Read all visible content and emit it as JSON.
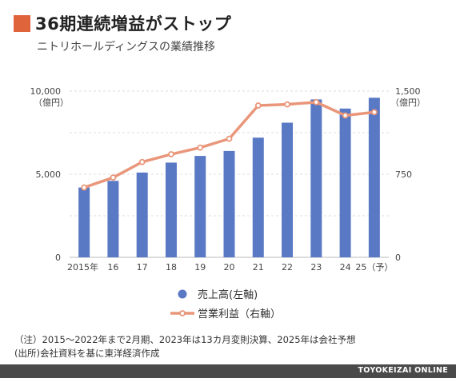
{
  "header": {
    "title": "36期連続増益がストップ",
    "subtitle": "ニトリホールディングスの業績推移"
  },
  "colors": {
    "accent": "#e0643b",
    "bar": "#5a79c4",
    "line": "#e9967a",
    "footer": "#4a4a4a"
  },
  "notes": {
    "note1": "（注）2015〜2022年まで2月期、2023年は13カ月変則決算、2025年は会社予想",
    "note2": "(出所)会社資料を基に東洋経済作成"
  },
  "footer": {
    "brand": "TOYOKEIZAI ONLINE"
  },
  "chart_data": {
    "type": "bar",
    "categories": [
      "2015年",
      "16",
      "17",
      "18",
      "19",
      "20",
      "21",
      "22",
      "23",
      "24",
      "25（予）"
    ],
    "series": [
      {
        "name": "売上高(左軸)",
        "type": "bar",
        "axis": "left",
        "values": [
          4200,
          4600,
          5100,
          5700,
          6100,
          6400,
          7200,
          8100,
          9500,
          8950,
          9600
        ]
      },
      {
        "name": "営業利益（右軸）",
        "type": "line",
        "axis": "right",
        "values": [
          630,
          720,
          860,
          930,
          990,
          1070,
          1370,
          1380,
          1400,
          1280,
          1310
        ]
      }
    ],
    "left_axis": {
      "unit": "（億円）",
      "ylim": [
        0,
        10000
      ],
      "ticks": [
        "0",
        "5,000",
        "10,000"
      ]
    },
    "right_axis": {
      "unit": "（億円）",
      "ylim": [
        0,
        1500
      ],
      "ticks": [
        "0",
        "750",
        "1,500"
      ]
    },
    "grid": true,
    "legend_placement": "bottom"
  }
}
